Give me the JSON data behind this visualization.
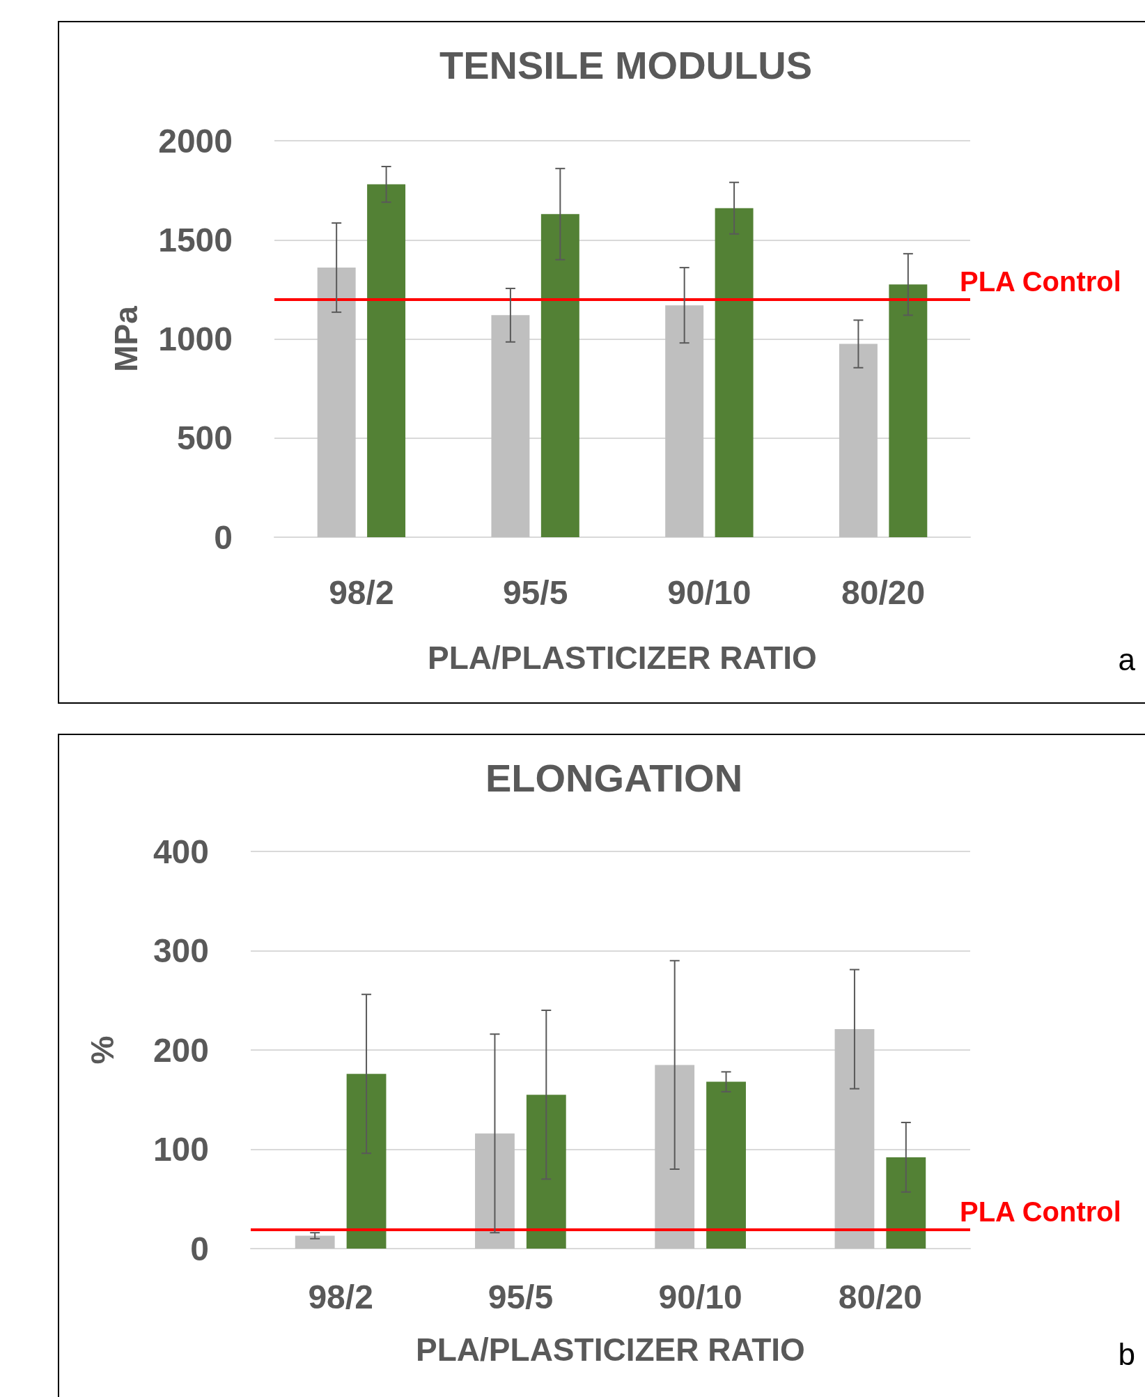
{
  "chart_data": [
    {
      "type": "bar",
      "title": "TENSILE MODULUS",
      "xlabel": "PLA/PLASTICIZER RATIO",
      "ylabel": "MPa",
      "categories": [
        "98/2",
        "95/5",
        "90/10",
        "80/20"
      ],
      "series": [
        {
          "color": "#bfbfbf",
          "values": [
            1360,
            1120,
            1170,
            975
          ],
          "errors": [
            225,
            135,
            190,
            120
          ]
        },
        {
          "color": "#538135",
          "values": [
            1780,
            1630,
            1660,
            1275
          ],
          "errors": [
            90,
            230,
            130,
            155
          ]
        }
      ],
      "ylim": [
        0,
        2000
      ],
      "yticks": [
        0,
        500,
        1000,
        1500,
        2000
      ],
      "grid": "y",
      "ref_lines": [
        {
          "axis": "y",
          "value": 1200,
          "label": "PLA Control",
          "color": "#ff0000"
        }
      ],
      "annotations": [
        "a"
      ]
    },
    {
      "type": "bar",
      "title": "ELONGATION",
      "xlabel": "PLA/PLASTICIZER RATIO",
      "ylabel": "%",
      "categories": [
        "98/2",
        "95/5",
        "90/10",
        "80/20"
      ],
      "series": [
        {
          "color": "#bfbfbf",
          "values": [
            13,
            116,
            185,
            221
          ],
          "errors": [
            3,
            100,
            105,
            60
          ]
        },
        {
          "color": "#538135",
          "values": [
            176,
            155,
            168,
            92
          ],
          "errors": [
            80,
            85,
            10,
            35
          ]
        }
      ],
      "ylim": [
        0,
        400
      ],
      "yticks": [
        0,
        100,
        200,
        300,
        400
      ],
      "grid": "y",
      "ref_lines": [
        {
          "axis": "y",
          "value": 19,
          "label": "PLA Control",
          "color": "#ff0000"
        }
      ],
      "annotations": [
        "b"
      ]
    }
  ]
}
